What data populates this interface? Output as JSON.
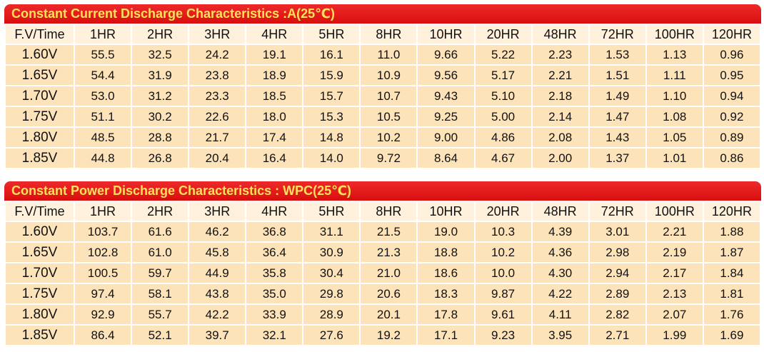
{
  "colors": {
    "title_bg": "#e01a1a",
    "title_text": "#ffe25a",
    "header_row_bg": "#fff1dc",
    "data_row_bg": "#fde3b9"
  },
  "tables": [
    {
      "title": "Constant Current Discharge Characteristics :A(25℃)",
      "columns": [
        "F.V/Time",
        "1HR",
        "2HR",
        "3HR",
        "4HR",
        "5HR",
        "8HR",
        "10HR",
        "20HR",
        "48HR",
        "72HR",
        "100HR",
        "120HR"
      ],
      "rows": [
        {
          "label": "1.60V",
          "values": [
            "55.5",
            "32.5",
            "24.2",
            "19.1",
            "16.1",
            "11.0",
            "9.66",
            "5.22",
            "2.23",
            "1.53",
            "1.13",
            "0.96"
          ]
        },
        {
          "label": "1.65V",
          "values": [
            "54.4",
            "31.9",
            "23.8",
            "18.9",
            "15.9",
            "10.9",
            "9.56",
            "5.17",
            "2.21",
            "1.51",
            "1.11",
            "0.95"
          ]
        },
        {
          "label": "1.70V",
          "values": [
            "53.0",
            "31.2",
            "23.3",
            "18.5",
            "15.7",
            "10.7",
            "9.43",
            "5.10",
            "2.18",
            "1.49",
            "1.10",
            "0.94"
          ]
        },
        {
          "label": "1.75V",
          "values": [
            "51.1",
            "30.2",
            "22.6",
            "18.0",
            "15.3",
            "10.5",
            "9.25",
            "5.00",
            "2.14",
            "1.47",
            "1.08",
            "0.92"
          ]
        },
        {
          "label": "1.80V",
          "values": [
            "48.5",
            "28.8",
            "21.7",
            "17.4",
            "14.8",
            "10.2",
            "9.00",
            "4.86",
            "2.08",
            "1.43",
            "1.05",
            "0.89"
          ]
        },
        {
          "label": "1.85V",
          "values": [
            "44.8",
            "26.8",
            "20.4",
            "16.4",
            "14.0",
            "9.72",
            "8.64",
            "4.67",
            "2.00",
            "1.37",
            "1.01",
            "0.86"
          ]
        }
      ]
    },
    {
      "title": "Constant Power Discharge Characteristics : WPC(25℃)",
      "columns": [
        "F.V/Time",
        "1HR",
        "2HR",
        "3HR",
        "4HR",
        "5HR",
        "8HR",
        "10HR",
        "20HR",
        "48HR",
        "72HR",
        "100HR",
        "120HR"
      ],
      "rows": [
        {
          "label": "1.60V",
          "values": [
            "103.7",
            "61.6",
            "46.2",
            "36.8",
            "31.1",
            "21.5",
            "19.0",
            "10.3",
            "4.39",
            "3.01",
            "2.21",
            "1.88"
          ]
        },
        {
          "label": "1.65V",
          "values": [
            "102.8",
            "61.0",
            "45.8",
            "36.4",
            "30.9",
            "21.3",
            "18.8",
            "10.2",
            "4.36",
            "2.98",
            "2.19",
            "1.87"
          ]
        },
        {
          "label": "1.70V",
          "values": [
            "100.5",
            "59.7",
            "44.9",
            "35.8",
            "30.4",
            "21.0",
            "18.6",
            "10.0",
            "4.30",
            "2.94",
            "2.17",
            "1.84"
          ]
        },
        {
          "label": "1.75V",
          "values": [
            "97.4",
            "58.1",
            "43.8",
            "35.0",
            "29.8",
            "20.6",
            "18.3",
            "9.87",
            "4.22",
            "2.89",
            "2.13",
            "1.81"
          ]
        },
        {
          "label": "1.80V",
          "values": [
            "92.9",
            "55.7",
            "42.2",
            "33.9",
            "28.9",
            "20.1",
            "17.8",
            "9.61",
            "4.11",
            "2.82",
            "2.07",
            "1.76"
          ]
        },
        {
          "label": "1.85V",
          "values": [
            "86.4",
            "52.1",
            "39.7",
            "32.1",
            "27.6",
            "19.2",
            "17.1",
            "9.23",
            "3.95",
            "2.71",
            "1.99",
            "1.69"
          ]
        }
      ]
    }
  ]
}
